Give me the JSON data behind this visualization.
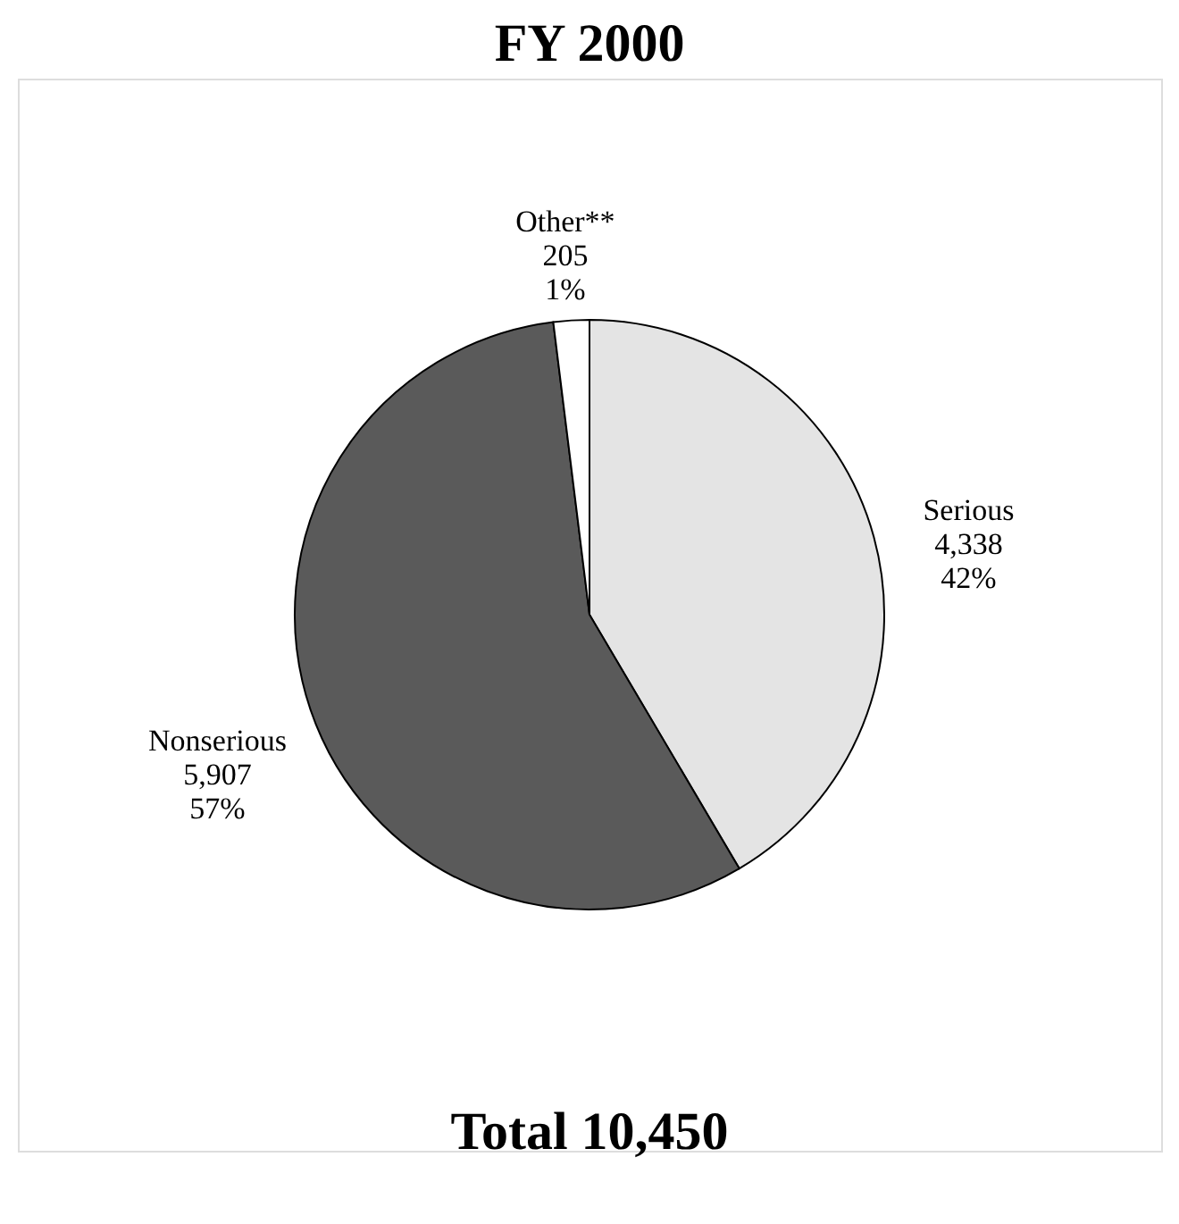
{
  "chart_data": {
    "type": "pie",
    "title": "FY 2000",
    "categories": [
      "Serious",
      "Nonserious",
      "Other**"
    ],
    "values": [
      4338,
      5907,
      205
    ],
    "value_labels": [
      "4,338\n42%",
      "5,907\n57%",
      "205\n1%"
    ],
    "colors": [
      "#e4e4e4",
      "#5a5a5a",
      "#ffffff"
    ],
    "annotations": [
      "Total 10,450"
    ],
    "legend": false
  }
}
